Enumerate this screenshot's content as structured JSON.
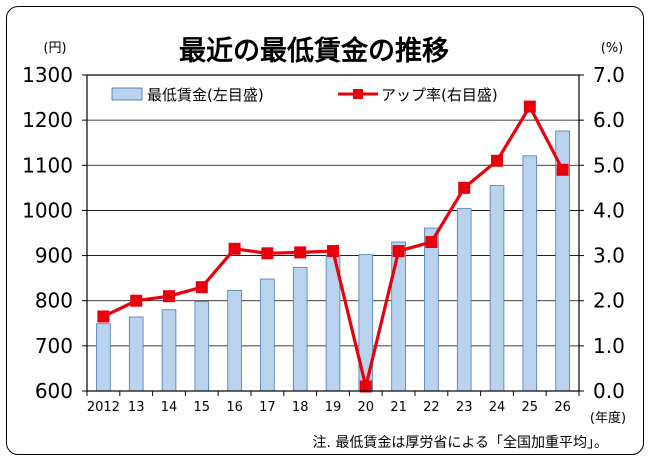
{
  "chart_data": {
    "type": "bar+line",
    "title": "最近の最低賃金の推移",
    "left_unit": "(円)",
    "right_unit": "(%)",
    "x_unit": "(年度)",
    "note": "注. 最低賃金は厚労省による「全国加重平均」。",
    "categories": [
      "2012",
      "13",
      "14",
      "15",
      "16",
      "17",
      "18",
      "19",
      "20",
      "21",
      "22",
      "23",
      "24",
      "25",
      "26"
    ],
    "ylim_left": [
      600,
      1300
    ],
    "yticks_left": [
      600,
      700,
      800,
      900,
      1000,
      1100,
      1200,
      1300
    ],
    "ylim_right": [
      0.0,
      7.0
    ],
    "yticks_right": [
      "0.0",
      "1.0",
      "2.0",
      "3.0",
      "4.0",
      "5.0",
      "6.0",
      "7.0"
    ],
    "series": [
      {
        "name": "最低賃金(左目盛)",
        "kind": "bar",
        "axis": "left",
        "color": "#b9d3ee",
        "values": [
          749,
          764,
          780,
          798,
          823,
          848,
          874,
          901,
          902,
          930,
          961,
          1004,
          1055,
          1121,
          1176
        ]
      },
      {
        "name": "アップ率(右目盛)",
        "kind": "line",
        "axis": "right",
        "color": "#e8000b",
        "values": [
          1.65,
          2.0,
          2.1,
          2.3,
          3.15,
          3.05,
          3.07,
          3.1,
          0.1,
          3.1,
          3.3,
          4.5,
          5.1,
          6.3,
          4.9
        ]
      }
    ],
    "grid": true,
    "legend_position": "top"
  }
}
